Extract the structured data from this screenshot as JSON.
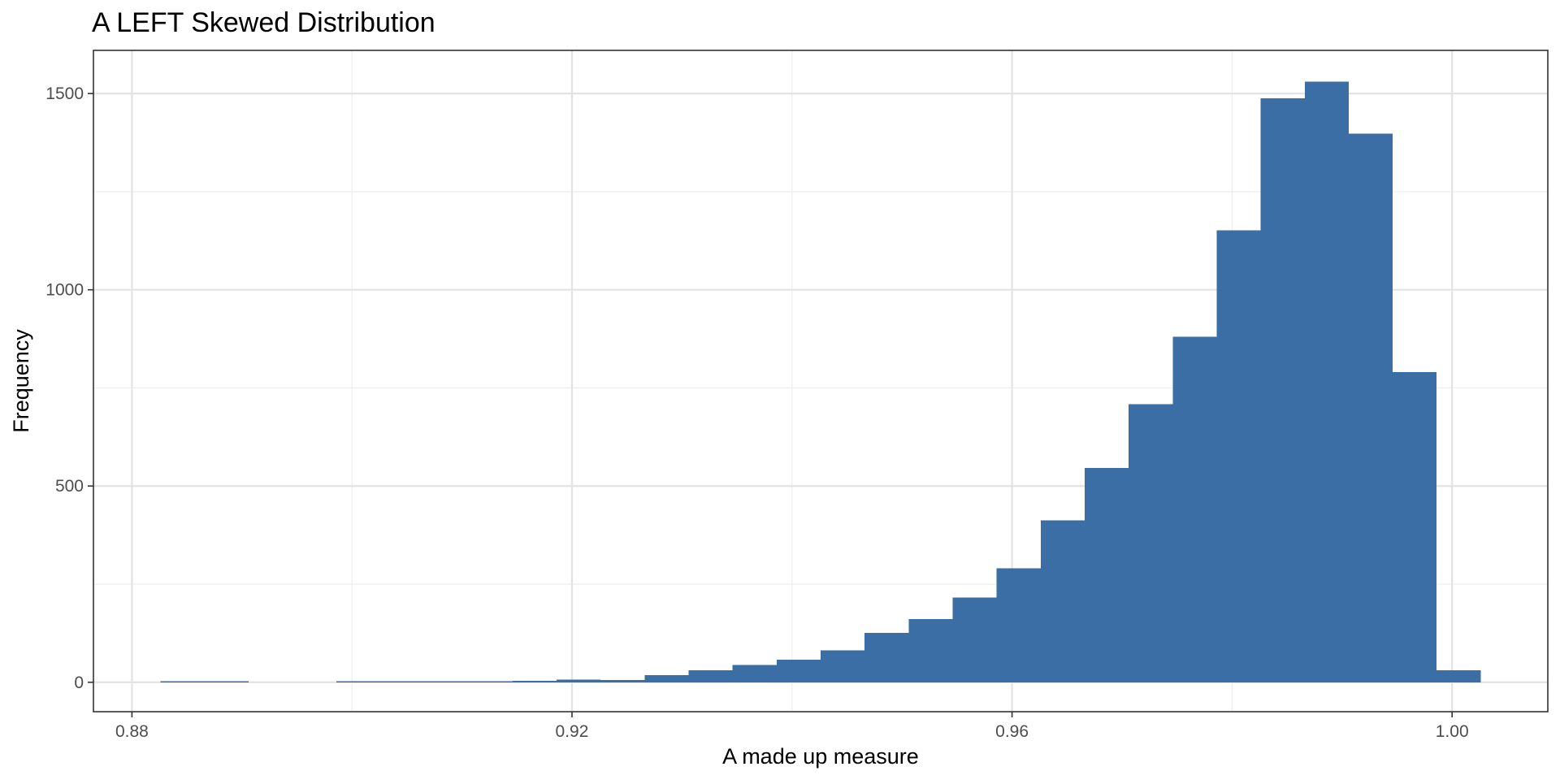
{
  "chart_data": {
    "type": "histogram",
    "title": "A LEFT Skewed Distribution",
    "xlabel": "A made up measure",
    "ylabel": "Frequency",
    "xlim": [
      0.8765,
      1.0087
    ],
    "ylim": [
      -75,
      1610
    ],
    "x_ticks": [
      {
        "value": 0.88,
        "label": "0.88"
      },
      {
        "value": 0.92,
        "label": "0.92"
      },
      {
        "value": 0.96,
        "label": "0.96"
      },
      {
        "value": 1.0,
        "label": "1.00"
      }
    ],
    "x_minor_ticks": [
      0.9,
      0.94,
      0.98
    ],
    "y_ticks": [
      {
        "value": 0,
        "label": "0"
      },
      {
        "value": 500,
        "label": "500"
      },
      {
        "value": 1000,
        "label": "1000"
      },
      {
        "value": 1500,
        "label": "1500"
      }
    ],
    "y_minor_ticks": [
      250,
      750,
      1250
    ],
    "grid": true,
    "bar_color": "#3A6EA5",
    "bins": [
      {
        "start": 0.8826,
        "end": 0.8866,
        "count": 1
      },
      {
        "start": 0.8866,
        "end": 0.8906,
        "count": 1
      },
      {
        "start": 0.8906,
        "end": 0.8946,
        "count": 0
      },
      {
        "start": 0.8946,
        "end": 0.8986,
        "count": 0
      },
      {
        "start": 0.8986,
        "end": 0.9026,
        "count": 2
      },
      {
        "start": 0.9026,
        "end": 0.9066,
        "count": 1
      },
      {
        "start": 0.9066,
        "end": 0.9106,
        "count": 2
      },
      {
        "start": 0.9106,
        "end": 0.9146,
        "count": 3
      },
      {
        "start": 0.9146,
        "end": 0.9186,
        "count": 4
      },
      {
        "start": 0.9186,
        "end": 0.9226,
        "count": 7
      },
      {
        "start": 0.9226,
        "end": 0.9266,
        "count": 6
      },
      {
        "start": 0.9266,
        "end": 0.9306,
        "count": 18
      },
      {
        "start": 0.9306,
        "end": 0.9346,
        "count": 31
      },
      {
        "start": 0.9346,
        "end": 0.9386,
        "count": 44
      },
      {
        "start": 0.9386,
        "end": 0.9426,
        "count": 57
      },
      {
        "start": 0.9426,
        "end": 0.9466,
        "count": 81
      },
      {
        "start": 0.9466,
        "end": 0.9506,
        "count": 126
      },
      {
        "start": 0.9506,
        "end": 0.9546,
        "count": 161
      },
      {
        "start": 0.9546,
        "end": 0.9586,
        "count": 216
      },
      {
        "start": 0.9586,
        "end": 0.9626,
        "count": 290
      },
      {
        "start": 0.9626,
        "end": 0.9666,
        "count": 413
      },
      {
        "start": 0.9666,
        "end": 0.9706,
        "count": 546
      },
      {
        "start": 0.9706,
        "end": 0.9746,
        "count": 708
      },
      {
        "start": 0.9746,
        "end": 0.9786,
        "count": 880
      },
      {
        "start": 0.9786,
        "end": 0.9826,
        "count": 1152
      },
      {
        "start": 0.9826,
        "end": 0.9866,
        "count": 1488
      },
      {
        "start": 0.9866,
        "end": 0.9906,
        "count": 1530
      },
      {
        "start": 0.9906,
        "end": 0.9946,
        "count": 1398
      },
      {
        "start": 0.9946,
        "end": 0.9986,
        "count": 790
      },
      {
        "start": 0.9986,
        "end": 1.0026,
        "count": 31
      }
    ]
  }
}
